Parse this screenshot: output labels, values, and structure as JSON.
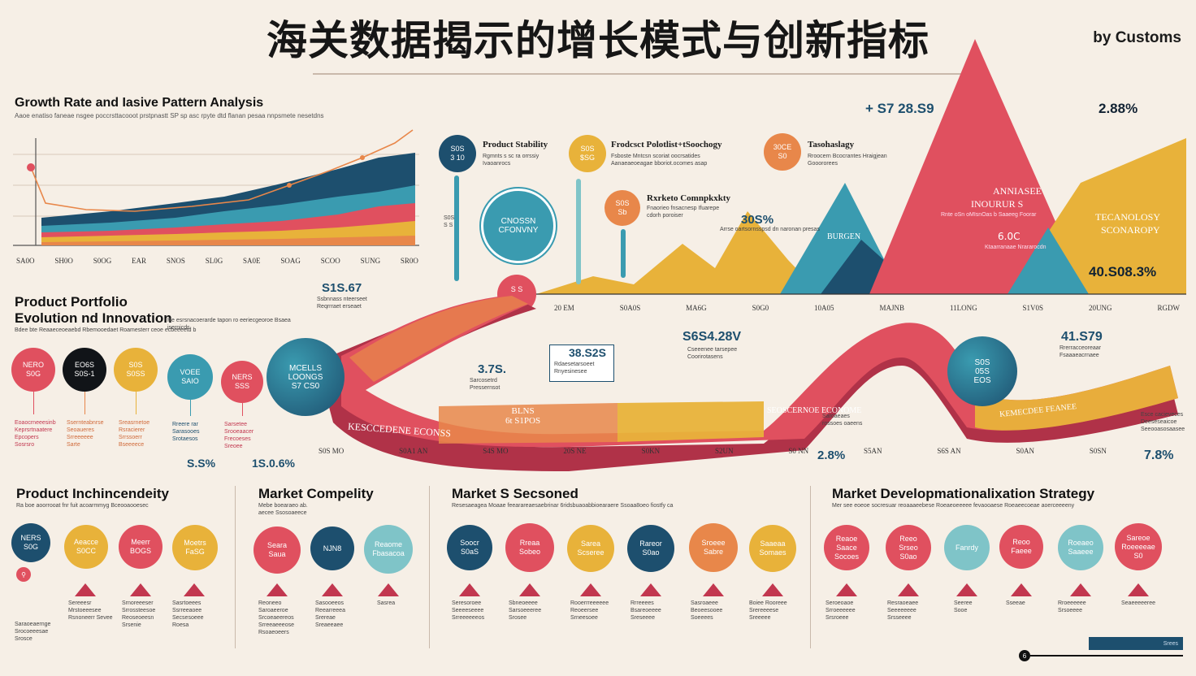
{
  "header": {
    "title": "海关数据揭示的增长模式与创新指标",
    "byline": "by Customs"
  },
  "colors": {
    "red": "#e0505f",
    "crimson": "#c2374f",
    "yellow": "#e8b23a",
    "teal": "#3a9bb0",
    "navy": "#1d4f6e",
    "orange": "#e8874a",
    "cream": "#f6efe6"
  },
  "growth": {
    "title": "Growth Rate and Iasive Pattern Analysis",
    "subtitle": "Aaoe enatiso faneae nsgee poccrsttacooot prstpnastt SP sp asc rpyte dtd flanan pesaa nnpsmete nesetdns",
    "ticks": [
      "S​A0O",
      "SH0O",
      "S0OG",
      "EAR",
      "SNOS",
      "SL0G",
      "SA0E",
      "SOAG",
      "SCOO",
      "SUNG",
      "SR0O"
    ]
  },
  "top_callouts": {
    "stability": {
      "badge_line1": "S0S",
      "badge_line2": "3 10",
      "title": "Product Stability",
      "desc": "Rgmnts s sc ra orrssiy Ivaoanrocs"
    },
    "portfolio": {
      "badge_line1": "S0S",
      "badge_line2": "$SG",
      "title": "Frodcsct Polotlist+tSoochogy",
      "desc": "Fsboste Mntcsn scoriat oocrsatides Aanaeaeoeagae bboriot.ocomes asap"
    },
    "technology": {
      "badge_line1": "30CE",
      "badge_line2": "S0",
      "title": "Tasohaslagy",
      "desc": "Rroocern Bcocrantes Hraigjean Gooororees"
    },
    "complexity": {
      "badge_line1": "S0S",
      "badge_line2": "Sb",
      "title": "Rxrketo Comnpkxkty",
      "desc": "Fnaorieo fnsacnesp Ifuarepe cdorh poroiser"
    },
    "economy_circle": "CNOSSN\nCFONVNY",
    "left_small": "S0S\nS S",
    "pin_values": "S S\nS"
  },
  "mountains": {
    "value_top_left": "+ S7 28.S9",
    "value_top_right": "2.88%",
    "pct_mid": "30S%",
    "pct_mid_sub": "Arrse oartsornsspsd dn naronan presas",
    "big_label_line1": "ANNIASEE",
    "big_label_line2": "INOURUR S",
    "big_label_sub": "Rnte oSn oMIsnOas b Saaeeg Foorar",
    "mini_pct": "6.0C",
    "mini_sub": "Ktaarranaae  Nrararocdn",
    "tech_line1": "TECANOLOSY",
    "tech_line2": "SCONAROPY",
    "bottom_right_value": "40.S08.3%",
    "teal_peak_label": "BURGEN",
    "ticks": [
      "20 EM",
      "S0A0S",
      "MA6G",
      "S0G0",
      "10A05",
      "MAJNB",
      "11LONG",
      "S1V0S",
      "20UNG",
      "RGDW"
    ]
  },
  "wave": {
    "value_a": "S1S.67",
    "value_a_sub": "Ssbnnass nteerseet Reqrrraet erseaet",
    "value_b": "3.7S.",
    "value_b_sub": "Sarcosetrd Pressernsot",
    "value_c": "38.S2S",
    "value_c_sub": "Rdaesetarsoeet Rnyesinesee",
    "value_d": "S6S4.28V",
    "value_d_sub": "Cseeenee tarsepee Coorirotasens",
    "value_e": "41.S79",
    "value_e_sub": "Rrerracceoreaar Fsaaaeacrnaee",
    "center_label": "BLNS\n6t S1POS",
    "band_text_left": "KESCCEDENE ECONSS",
    "band_text_right": "SEOSCERNOE ECONOME",
    "band_text_far": "KEMECDEE FEANEE",
    "sphere_left": "MCELLS\nLOONGS\nS7 CS0",
    "sphere_right": "S0S\n05S\nEOS",
    "right_note": "Esce cacieveces Deeseseaicoe Seeooasosaasee",
    "ticks": [
      "S0S MO",
      "S0A1 AN",
      "S4S MO",
      "20S NE",
      "S0KN",
      "S2UN",
      "S0 NN",
      "S5AN",
      "S6S AN",
      "S0AN",
      "S0SN"
    ],
    "pct_left": "2.8%",
    "pct_right": "7.8%",
    "sub_left": "Saroaeaes rossoes oaeens"
  },
  "portfolio": {
    "title_line1": "Product Portfolio",
    "title_line2": "Evolution nd Innovation",
    "subtitle": "Bdee bte Reaaeceoeaebd Rbemooedaet Roamesterr ceoe ecbeeeetd b",
    "subtitle2": "Re esrsnacoerarde tapon ro eeriecgeoroe Bsaea isernicds",
    "circles": [
      {
        "text": "NERO\nS0G",
        "color": "#e0505f"
      },
      {
        "text": "EO6S\nS0S-1",
        "color": "#111418"
      },
      {
        "text": "S​0S\nS0SS",
        "color": "#e8b23a"
      },
      {
        "text": "VOEE\nSAIO",
        "color": "#3a9bb0"
      },
      {
        "text": "NERS\nSSS",
        "color": "#e0505f"
      }
    ],
    "captions": [
      "Eoaocrneeesinb Keprsrtnaatere Epcopers Sosrsro",
      "Ssernteabnrse Seoaueres Srreeeeee Sarte",
      "Sreasrnetoe Rsracierer Srrssoerr Bseeeece",
      "Rreere rar Sarasooes Srotaesos",
      "Sarsetee Srooeaacer Frecoeses Sreoee"
    ],
    "pct_a": "S.S%",
    "pct_b": "1S.0.6%"
  },
  "bottom": {
    "sections": [
      {
        "title": "Product Inchincendeity",
        "subtitle": "Ra boe aoorrooat fnr fuit acoarmmyg    Bceooaooesec",
        "circles": [
          {
            "text": "NERS\nS0G",
            "color": "#1d4f6e"
          },
          {
            "text": "Aeacce\nS0CC",
            "color": "#e8b23a"
          },
          {
            "text": "Meerr\nBOGS",
            "color": "#e0505f"
          },
          {
            "text": "Moetrs\nFaSG",
            "color": "#e8b23a"
          }
        ],
        "captions": [
          "Saraoeaernge Srocoeeesae Srosce",
          "Sereeesr Mrstoeeesee Rsnoneerr Sevee",
          "Srnoreeeser Srrossteesoe Reoseoeesn Srsenie",
          "Sasrtoeees Ssrreeaoee Secsesoeee Roesa"
        ]
      },
      {
        "title": "Market Compelity",
        "subtitle": "Mebe boearaeo ab. aecee Ssosoaeece",
        "circles": [
          {
            "text": "Seara\nSaua",
            "color": "#e0505f"
          },
          {
            "text": "NJN8",
            "color": "#1d4f6e"
          },
          {
            "text": "Reaome\nFbasacoa",
            "color": "#7fc4c8"
          }
        ],
        "captions": [
          "Reoneeo Saroaeeroe Srcoeaeereos Srreeaeeeose Rsoaeoeers",
          "Sasooeeos Reearreeea Srereae Sreaeeaee",
          "Sasrea"
        ]
      },
      {
        "title": "Market S Secsoned",
        "subtitle": "Resesaeagea Moaae feearareaesaebrinar 6ridsbuaoabbioearaere Ssoaa8oeo fiostfy ca",
        "circles": [
          {
            "text": "Soocr\nS0aS",
            "color": "#1d4f6e"
          },
          {
            "text": "Rreaa\nSobeo",
            "color": "#e0505f"
          },
          {
            "text": "Sarea\nScseree",
            "color": "#e8b23a"
          },
          {
            "text": "Rareor\nS0ao",
            "color": "#1d4f6e"
          },
          {
            "text": "Sroeee\nSabre",
            "color": "#e8874a"
          },
          {
            "text": "Saaeaa\nSomaes",
            "color": "#e8b23a"
          }
        ],
        "captions": [
          "Seresoroee Seeeeseeee Srreeeeeeos",
          "Sbneoeeee Sarsoeeeree Srosee",
          "Rooerrreeeeee Reoeersee Srneesoee",
          "Rrreeees Bsareoeeee Sreseeee",
          "Sasroaeee Beoeesooee Soeeees",
          "Boiee Rooreee Srereeeese Sreeeee"
        ]
      },
      {
        "title": "Market Developmationalixation Strategy",
        "subtitle": "Mer see eoeoe socresuar reoaaaeebese Roeaeoeeeee fevaooaese Roeaeecoeae aoerceeeeny",
        "circles": [
          {
            "text": "Reaoe\nSaace\nSocoes",
            "color": "#e0505f"
          },
          {
            "text": "Reeo\nSrseo\nS0ao",
            "color": "#e0505f"
          },
          {
            "text": "Fanrdy",
            "color": "#7fc4c8"
          },
          {
            "text": "Reoo\nFaeee",
            "color": "#e0505f"
          },
          {
            "text": "Roeaeo\nSaaeee",
            "color": "#7fc4c8"
          },
          {
            "text": "Sareoe\nRoeeeeae\nS0",
            "color": "#e0505f"
          }
        ],
        "captions": [
          "Seroeoaoe Srroeeeeee Srsroeee",
          "Resraoeaee Seeeeeeee Srsseeee",
          "Seeree Sooe",
          "Sseeae",
          "Rroeeeeee Srsoeeee",
          "Seaeeeeeree"
        ]
      }
    ],
    "footer_badge": "6",
    "footer_bar_text": "Srees"
  }
}
